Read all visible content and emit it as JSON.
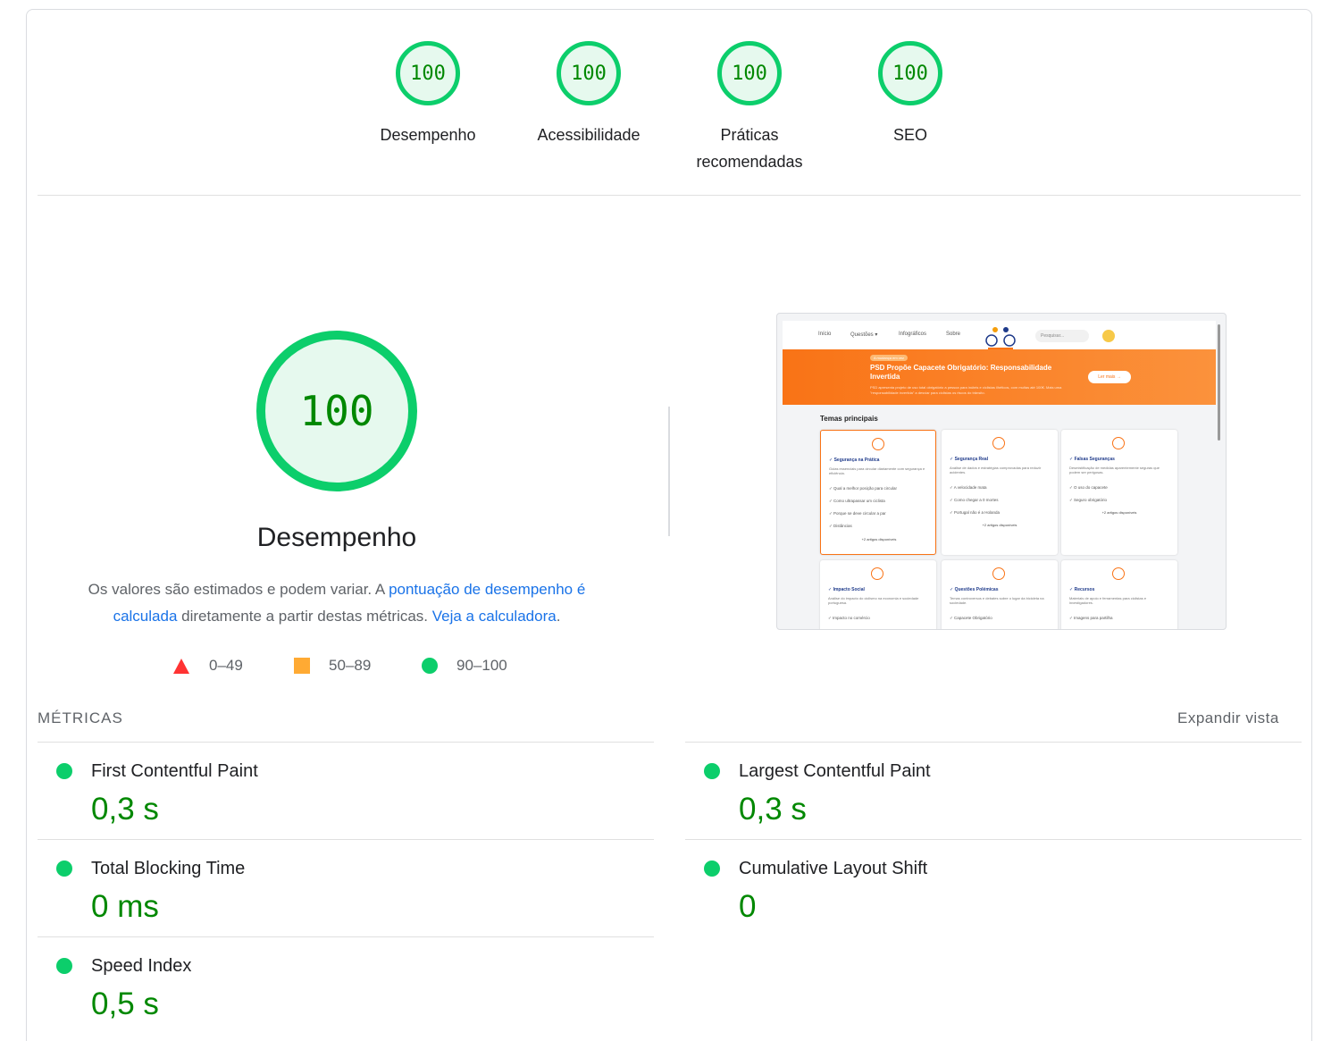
{
  "categories": [
    {
      "score": "100",
      "label": "Desempenho"
    },
    {
      "score": "100",
      "label": "Acessibilidade"
    },
    {
      "score": "100",
      "label": "Práticas recomendadas"
    },
    {
      "score": "100",
      "label": "SEO"
    }
  ],
  "performance": {
    "score": "100",
    "title": "Desempenho",
    "desc_prefix": "Os valores são estimados e podem variar. A ",
    "desc_link1": "pontuação de desempenho é calculada",
    "desc_middle": " diretamente a partir destas métricas. ",
    "desc_link2": "Veja a calculadora",
    "desc_suffix": "."
  },
  "legend": [
    {
      "range": "0–49",
      "color": "#ff3333"
    },
    {
      "range": "50–89",
      "color": "#ffaa33"
    },
    {
      "range": "90–100",
      "color": "#0cce6b"
    }
  ],
  "thumbnail": {
    "nav": [
      "Início",
      "Questões ▾",
      "Infográficos",
      "Sobre"
    ],
    "search_placeholder": "Pesquisar...",
    "badge": "A mudança em vez",
    "hero_title": "PSD Propõe Capacete Obrigatório: Responsabilidade Invertida",
    "hero_sub": "PSD apresenta projeto de uso total obrigatório a pessoa para inúteis e ciclistas ilhéticos, com multas até 100€. Mais uma \"responsabilidade invertida\" a desviar para ciclistas os riscos do trânsito.",
    "hero_button": "Ler mais →",
    "section": "Temas principais",
    "cards": [
      {
        "title": "✓ Segurança na Prática",
        "desc": "Guias essenciais para circular diariamente com segurança e eficiência.",
        "items": [
          "✓ Qual a melhor posição para circular",
          "✓ Como ultrapassar um ciclista",
          "✓ Porque se deve circular a par",
          "✓ Distâncias"
        ],
        "more": "+2 artigos disponíveis"
      },
      {
        "title": "✓ Segurança Real",
        "desc": "Análise de dados e estratégias comprovadas para reduzir acidentes.",
        "items": [
          "✓ A velocidade mata",
          "✓ Como chegar a 0 mortes",
          "✓ Portugal não é a Holanda"
        ],
        "more": "+2 artigos disponíveis"
      },
      {
        "title": "✓ Falsas Seguranças",
        "desc": "Desmistificação de medidas aparentemente seguras que podem ser perigosas.",
        "items": [
          "✓ O uso do capacete",
          "✓ Seguro obrigatório"
        ],
        "more": "+2 artigos disponíveis"
      },
      {
        "title": "✓ Impacto Social",
        "desc": "Análise do impacto do ciclismo na economia e sociedade portuguesa.",
        "items": [
          "✓ Impacto no comércio"
        ],
        "more": ""
      },
      {
        "title": "✓ Questões Polémicas",
        "desc": "Temas controversos e debates sobre o lugar da bicicleta na sociedade.",
        "items": [
          "✓ Capacete Obrigatório"
        ],
        "more": ""
      },
      {
        "title": "✓ Recursos",
        "desc": "Materiais de apoio e ferramentas para ciclistas e investigadores.",
        "items": [
          "✓ Imagens para partilha"
        ],
        "more": ""
      }
    ]
  },
  "metrics": {
    "title": "MÉTRICAS",
    "expand": "Expandir vista",
    "items": [
      {
        "name": "First Contentful Paint",
        "value": "0,3 s"
      },
      {
        "name": "Largest Contentful Paint",
        "value": "0,3 s"
      },
      {
        "name": "Total Blocking Time",
        "value": "0 ms"
      },
      {
        "name": "Cumulative Layout Shift",
        "value": "0"
      },
      {
        "name": "Speed Index",
        "value": "0,5 s"
      }
    ]
  }
}
